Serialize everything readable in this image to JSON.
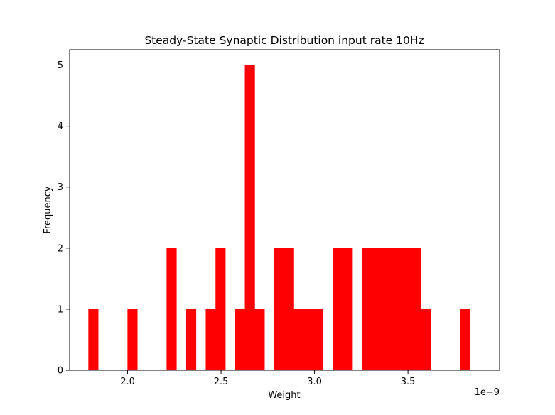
{
  "chart_data": {
    "type": "bar",
    "title": "Steady-State Synaptic Distribution input rate 10Hz",
    "xlabel": "Weight",
    "ylabel": "Frequency",
    "x_offset_label": "1e−9",
    "xlim": [
      1.69,
      3.99
    ],
    "ylim": [
      0,
      5.25
    ],
    "x_ticks": [
      2.0,
      2.5,
      3.0,
      3.5
    ],
    "x_tick_labels": [
      "2.0",
      "2.5",
      "3.0",
      "3.5"
    ],
    "y_ticks": [
      0,
      1,
      2,
      3,
      4,
      5
    ],
    "y_tick_labels": [
      "0",
      "1",
      "2",
      "3",
      "4",
      "5"
    ],
    "bin_start": 1.79,
    "bin_width": 0.05233,
    "bin_counts": [
      1,
      0,
      0,
      0,
      1,
      0,
      0,
      0,
      2,
      0,
      1,
      0,
      1,
      2,
      0,
      1,
      5,
      1,
      0,
      2,
      2,
      1,
      1,
      1,
      0,
      2,
      2,
      0,
      2,
      2,
      2,
      2,
      2,
      2,
      1,
      0,
      0,
      0,
      1
    ],
    "bar_color": "#ff0000",
    "grid": false,
    "legend": "none"
  }
}
